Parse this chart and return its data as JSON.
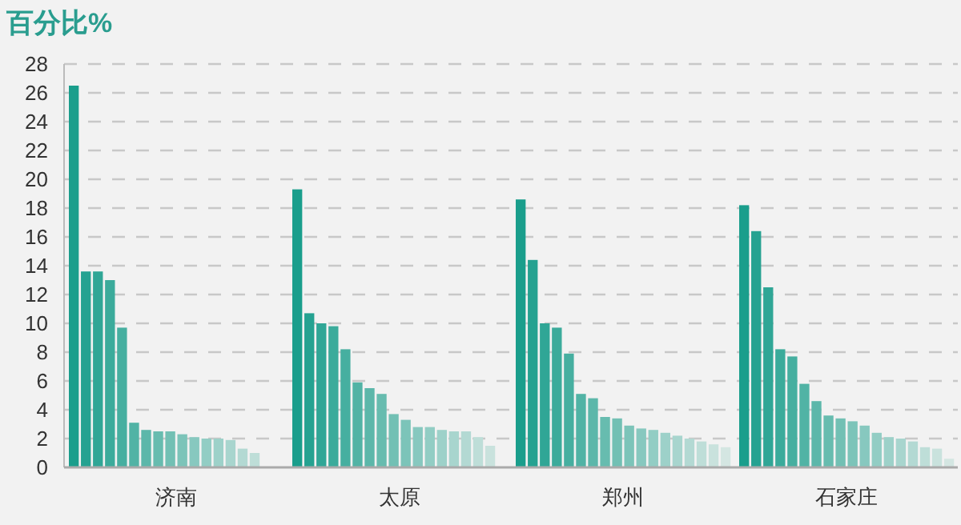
{
  "chart_data": {
    "type": "bar",
    "title": "百分比%",
    "categories": [
      "济南",
      "太原",
      "郑州",
      "石家庄"
    ],
    "ylim": [
      0,
      28
    ],
    "yticks": [
      0,
      2,
      4,
      6,
      8,
      10,
      12,
      14,
      16,
      18,
      20,
      22,
      24,
      26,
      28
    ],
    "grid": "y",
    "series": [
      {
        "color": "#1a9e8c",
        "values": [
          26.5,
          19.3,
          18.6,
          18.2
        ]
      },
      {
        "color": "#25a291",
        "values": [
          13.6,
          10.7,
          14.4,
          16.4
        ]
      },
      {
        "color": "#30a696",
        "values": [
          13.6,
          10.0,
          10.0,
          12.5
        ]
      },
      {
        "color": "#3bab9b",
        "values": [
          13.0,
          9.8,
          9.7,
          8.2
        ]
      },
      {
        "color": "#46afa0",
        "values": [
          9.7,
          8.2,
          7.9,
          7.7
        ]
      },
      {
        "color": "#51b3a5",
        "values": [
          3.1,
          5.9,
          5.1,
          5.8
        ]
      },
      {
        "color": "#5cb7aa",
        "values": [
          2.6,
          5.5,
          4.8,
          4.6
        ]
      },
      {
        "color": "#67bcaf",
        "values": [
          2.5,
          5.1,
          3.5,
          3.6
        ]
      },
      {
        "color": "#72c0b4",
        "values": [
          2.5,
          3.7,
          3.4,
          3.4
        ]
      },
      {
        "color": "#7cc4b9",
        "values": [
          2.3,
          3.3,
          2.9,
          3.2
        ]
      },
      {
        "color": "#87c8bf",
        "values": [
          2.1,
          2.8,
          2.7,
          2.9
        ]
      },
      {
        "color": "#92cdc4",
        "values": [
          2.0,
          2.8,
          2.6,
          2.4
        ]
      },
      {
        "color": "#9dd1c9",
        "values": [
          2.0,
          2.6,
          2.4,
          2.1
        ]
      },
      {
        "color": "#a8d5ce",
        "values": [
          1.9,
          2.5,
          2.2,
          2.0
        ]
      },
      {
        "color": "#b3d9d3",
        "values": [
          1.3,
          2.5,
          2.0,
          1.8
        ]
      },
      {
        "color": "#beded8",
        "values": [
          1.0,
          2.1,
          1.8,
          1.4
        ]
      },
      {
        "color": "#c9e2dd",
        "values": [
          null,
          1.5,
          1.6,
          1.3
        ]
      },
      {
        "color": "#d4e6e2",
        "values": [
          null,
          null,
          1.4,
          0.6
        ]
      }
    ]
  }
}
